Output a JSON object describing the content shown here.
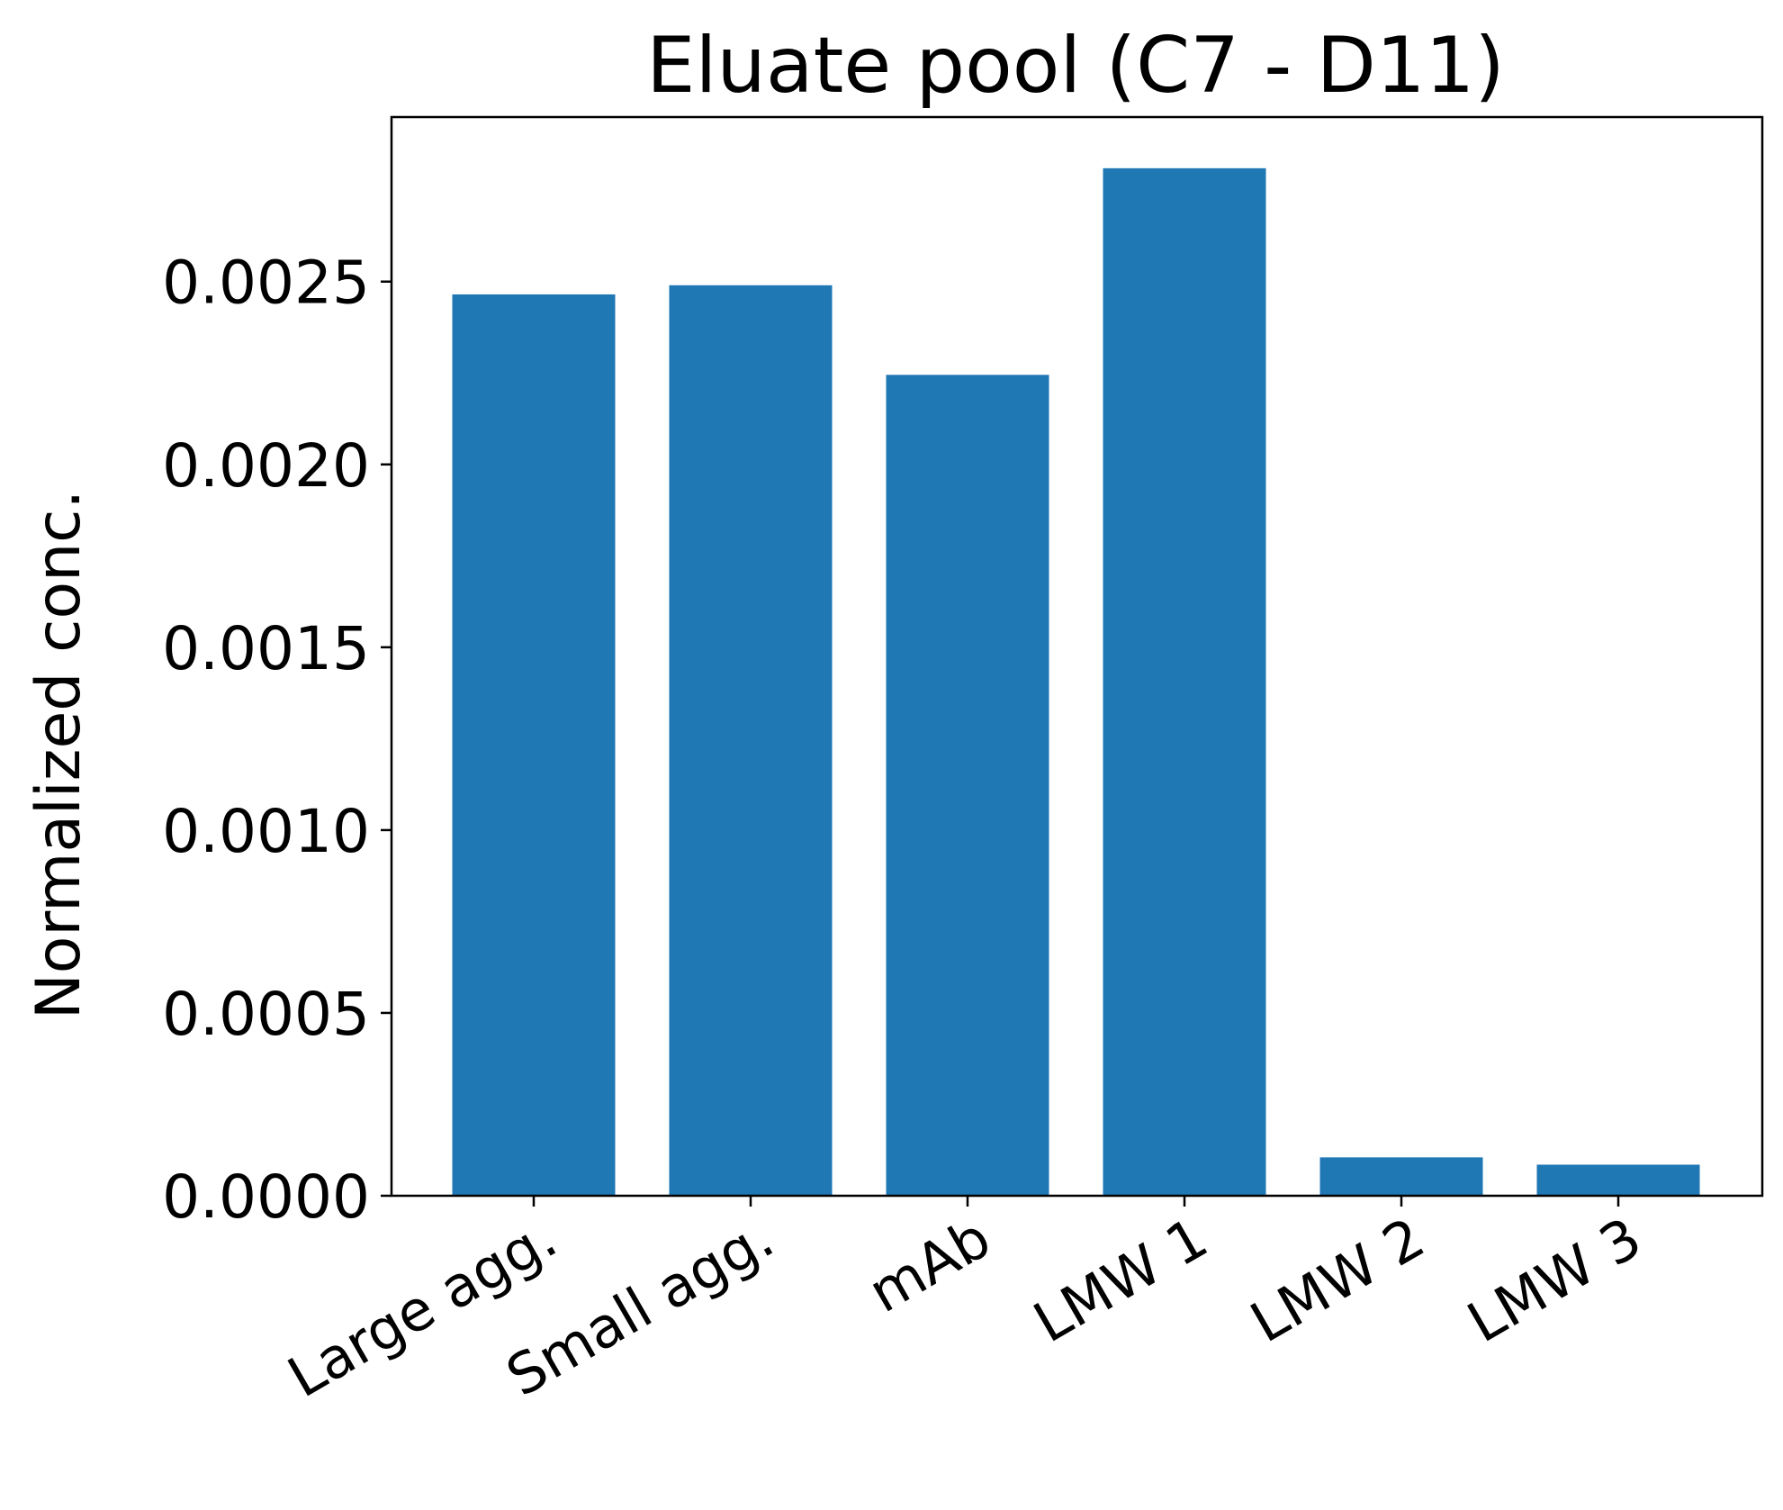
{
  "chart_data": {
    "type": "bar",
    "title": "Eluate pool (C7 - D11)",
    "xlabel": "",
    "ylabel": "Normalized conc.",
    "categories": [
      "Large agg.",
      "Small agg.",
      "mAb",
      "LMW 1",
      "LMW 2",
      "LMW 3"
    ],
    "values": [
      0.002465,
      0.00249,
      0.002245,
      0.00281,
      0.000105,
      8.5e-05
    ],
    "ylim": [
      0,
      0.00295
    ],
    "yticks": [
      0.0,
      0.0005,
      0.001,
      0.0015,
      0.002,
      0.0025
    ],
    "ytick_labels": [
      "0.0000",
      "0.0005",
      "0.0010",
      "0.0015",
      "0.0020",
      "0.0025"
    ],
    "bar_color": "#1f77b4",
    "grid": false,
    "legend": "none"
  }
}
